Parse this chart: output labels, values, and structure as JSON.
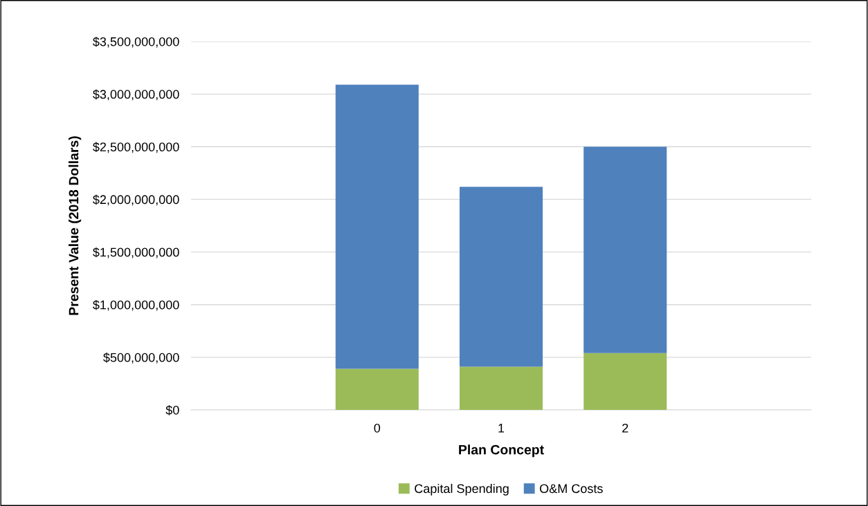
{
  "chart_data": {
    "type": "bar",
    "stacked": true,
    "xlabel": "Plan Concept",
    "ylabel": "Present Value (2018 Dollars)",
    "categories": [
      null,
      "0",
      "1",
      "2",
      null
    ],
    "series": [
      {
        "name": "Capital Spending",
        "color": "#9bbb59",
        "values": [
          null,
          390000000,
          410000000,
          540000000,
          null
        ]
      },
      {
        "name": "O&M Costs",
        "color": "#4f81bd",
        "values": [
          null,
          2700000000,
          1710000000,
          1960000000,
          null
        ]
      }
    ],
    "ylim": [
      0,
      3500000000
    ],
    "yticks": [
      {
        "value": 0,
        "label": "$0"
      },
      {
        "value": 500000000,
        "label": "$500,000,000"
      },
      {
        "value": 1000000000,
        "label": "$1,000,000,000"
      },
      {
        "value": 1500000000,
        "label": "$1,500,000,000"
      },
      {
        "value": 2000000000,
        "label": "$2,000,000,000"
      },
      {
        "value": 2500000000,
        "label": "$2,500,000,000"
      },
      {
        "value": 3000000000,
        "label": "$3,000,000,000"
      },
      {
        "value": 3500000000,
        "label": "$3,500,000,000"
      }
    ],
    "grid": "y",
    "legend": "bottom"
  }
}
